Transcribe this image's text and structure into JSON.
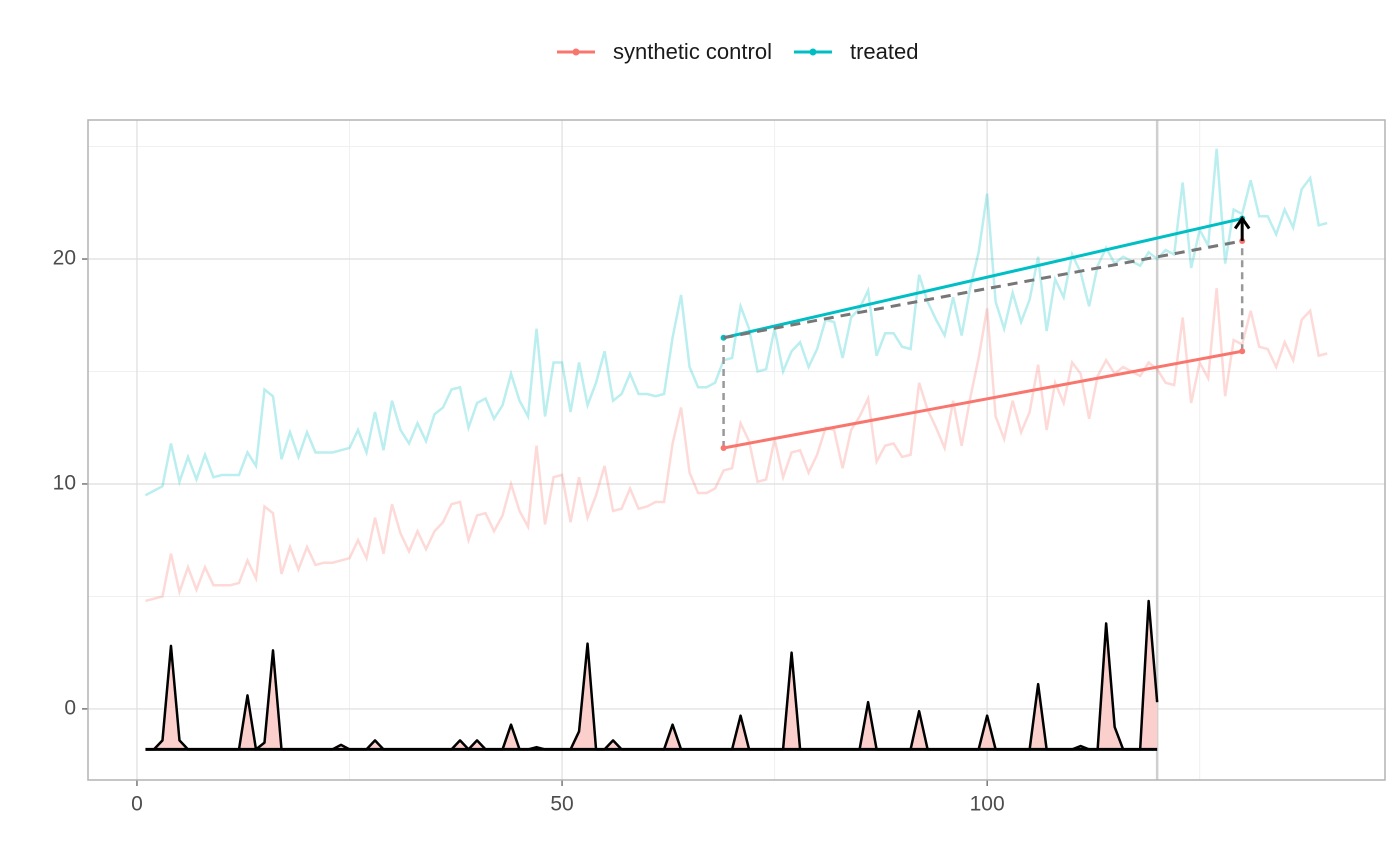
{
  "chart_data": {
    "type": "synthdid",
    "legend_position": "top",
    "xlim": [
      -5.76,
      146.8
    ],
    "xticks": [
      0,
      50,
      100
    ],
    "ylim": [
      -3.16,
      26.18
    ],
    "yticks": [
      0,
      10,
      20
    ],
    "grid": true,
    "x": [
      1,
      2,
      3,
      4,
      5,
      6,
      7,
      8,
      9,
      10,
      11,
      12,
      13,
      14,
      15,
      16,
      17,
      18,
      19,
      20,
      21,
      22,
      23,
      24,
      25,
      26,
      27,
      28,
      29,
      30,
      31,
      32,
      33,
      34,
      35,
      36,
      37,
      38,
      39,
      40,
      41,
      42,
      43,
      44,
      45,
      46,
      47,
      48,
      49,
      50,
      51,
      52,
      53,
      54,
      55,
      56,
      57,
      58,
      59,
      60,
      61,
      62,
      63,
      64,
      65,
      66,
      67,
      68,
      69,
      70,
      71,
      72,
      73,
      74,
      75,
      76,
      77,
      78,
      79,
      80,
      81,
      82,
      83,
      84,
      85,
      86,
      87,
      88,
      89,
      90,
      91,
      92,
      93,
      94,
      95,
      96,
      97,
      98,
      99,
      100,
      101,
      102,
      103,
      104,
      105,
      106,
      107,
      108,
      109,
      110,
      111,
      112,
      113,
      114,
      115,
      116,
      117,
      118,
      119,
      120,
      121,
      122,
      123,
      124,
      125,
      126,
      127,
      128,
      129,
      130,
      131,
      132,
      133,
      134,
      135,
      136,
      137,
      138,
      139,
      140
    ],
    "series": [
      {
        "name": "synthetic control",
        "color": "#f8766d",
        "values": [
          4.8,
          4.9,
          5.0,
          6.9,
          5.2,
          6.3,
          5.3,
          6.3,
          5.5,
          5.5,
          5.5,
          5.6,
          6.6,
          5.8,
          9.0,
          8.7,
          6.0,
          7.2,
          6.2,
          7.2,
          6.4,
          6.5,
          6.5,
          6.6,
          6.7,
          7.5,
          6.7,
          8.5,
          6.9,
          9.1,
          7.8,
          7.0,
          7.9,
          7.1,
          7.9,
          8.3,
          9.1,
          9.2,
          7.5,
          8.6,
          8.7,
          7.9,
          8.6,
          10.0,
          8.8,
          8.1,
          11.7,
          8.2,
          10.3,
          10.4,
          8.3,
          10.3,
          8.5,
          9.5,
          10.8,
          8.8,
          8.9,
          9.8,
          8.9,
          9.0,
          9.2,
          9.2,
          11.8,
          13.4,
          10.5,
          9.6,
          9.6,
          9.8,
          10.6,
          10.7,
          12.7,
          11.9,
          10.1,
          10.2,
          12.0,
          10.3,
          11.4,
          11.5,
          10.5,
          11.3,
          12.5,
          12.4,
          10.7,
          12.4,
          13.0,
          13.8,
          11.0,
          11.7,
          11.8,
          11.2,
          11.3,
          14.5,
          13.3,
          12.5,
          11.6,
          13.7,
          11.7,
          13.8,
          15.6,
          17.8,
          13.0,
          12.0,
          13.7,
          12.3,
          13.2,
          15.3,
          12.4,
          14.5,
          13.6,
          15.4,
          14.9,
          12.9,
          14.8,
          15.5,
          14.9,
          15.2,
          15.0,
          14.8,
          15.4,
          15.1,
          14.5,
          14.4,
          17.4,
          13.6,
          15.4,
          14.7,
          18.7,
          13.9,
          16.4,
          16.2,
          17.7,
          16.1,
          16.0,
          15.2,
          16.3,
          15.5,
          17.3,
          17.7,
          15.7,
          15.8
        ],
        "segment": {
          "x": [
            69,
            130
          ],
          "values": [
            11.6,
            15.9
          ]
        }
      },
      {
        "name": "treated",
        "color": "#00bfc4",
        "values": [
          9.5,
          9.7,
          9.9,
          11.8,
          10.1,
          11.2,
          10.2,
          11.3,
          10.3,
          10.4,
          10.4,
          10.4,
          11.4,
          10.8,
          14.2,
          13.9,
          11.1,
          12.3,
          11.2,
          12.3,
          11.4,
          11.4,
          11.4,
          11.5,
          11.6,
          12.4,
          11.4,
          13.2,
          11.5,
          13.7,
          12.4,
          11.8,
          12.7,
          11.9,
          13.1,
          13.4,
          14.2,
          14.3,
          12.5,
          13.6,
          13.8,
          12.9,
          13.5,
          14.9,
          13.7,
          13.0,
          16.9,
          13.0,
          15.4,
          15.4,
          13.2,
          15.4,
          13.5,
          14.5,
          15.9,
          13.7,
          14.0,
          14.9,
          14.0,
          14.0,
          13.9,
          14.0,
          16.5,
          18.4,
          15.2,
          14.3,
          14.3,
          14.5,
          15.5,
          15.6,
          17.9,
          16.9,
          15.0,
          15.1,
          16.9,
          15.0,
          15.9,
          16.3,
          15.2,
          16.0,
          17.3,
          17.2,
          15.6,
          17.4,
          17.8,
          18.6,
          15.7,
          16.7,
          16.7,
          16.1,
          16.0,
          19.3,
          18.1,
          17.3,
          16.6,
          18.3,
          16.6,
          18.7,
          20.3,
          22.9,
          18.1,
          16.9,
          18.5,
          17.2,
          18.2,
          20.1,
          16.8,
          19.1,
          18.3,
          20.2,
          19.4,
          17.9,
          19.7,
          20.5,
          19.8,
          20.1,
          19.9,
          19.7,
          20.3,
          20.0,
          20.4,
          20.2,
          23.4,
          19.6,
          21.3,
          20.6,
          24.9,
          19.8,
          22.2,
          22.0,
          23.5,
          21.9,
          21.9,
          21.1,
          22.2,
          21.4,
          23.1,
          23.6,
          21.5,
          21.6
        ],
        "segment": {
          "x": [
            69,
            130
          ],
          "values": [
            16.5,
            21.8
          ]
        }
      }
    ],
    "counterfactual": {
      "x": [
        69,
        130
      ],
      "values": [
        16.5,
        20.8
      ]
    },
    "treatment_start": 120,
    "weights": {
      "color": "#fbd0cc",
      "x": [
        1,
        2,
        3,
        4,
        5,
        6,
        12,
        13,
        14,
        15,
        16,
        17,
        23,
        24,
        25,
        27,
        28,
        29,
        37,
        38,
        39,
        40,
        41,
        43,
        44,
        45,
        46,
        47,
        48,
        51,
        52,
        53,
        54,
        55,
        56,
        57,
        62,
        63,
        64,
        70,
        71,
        72,
        76,
        77,
        78,
        85,
        86,
        87,
        91,
        92,
        93,
        99,
        100,
        101,
        105,
        106,
        107,
        110,
        111,
        112,
        113,
        114,
        115,
        116,
        118,
        119,
        120
      ],
      "values": [
        -1.8,
        -1.8,
        -1.4,
        2.8,
        -1.4,
        -1.8,
        -1.8,
        0.6,
        -1.8,
        -1.5,
        2.6,
        -1.8,
        -1.8,
        -1.6,
        -1.8,
        -1.8,
        -1.4,
        -1.8,
        -1.8,
        -1.4,
        -1.8,
        -1.4,
        -1.8,
        -1.8,
        -0.7,
        -1.8,
        -1.8,
        -1.7,
        -1.8,
        -1.8,
        -1.0,
        2.9,
        -1.8,
        -1.8,
        -1.4,
        -1.8,
        -1.8,
        -0.7,
        -1.8,
        -1.8,
        -0.3,
        -1.8,
        -1.8,
        2.5,
        -1.8,
        -1.8,
        0.3,
        -1.8,
        -1.8,
        -0.1,
        -1.8,
        -1.8,
        -0.3,
        -1.8,
        -1.8,
        1.1,
        -1.8,
        -1.8,
        -1.65,
        -1.8,
        -1.8,
        3.8,
        -0.8,
        -1.8,
        -1.8,
        4.8,
        0.3
      ]
    }
  }
}
